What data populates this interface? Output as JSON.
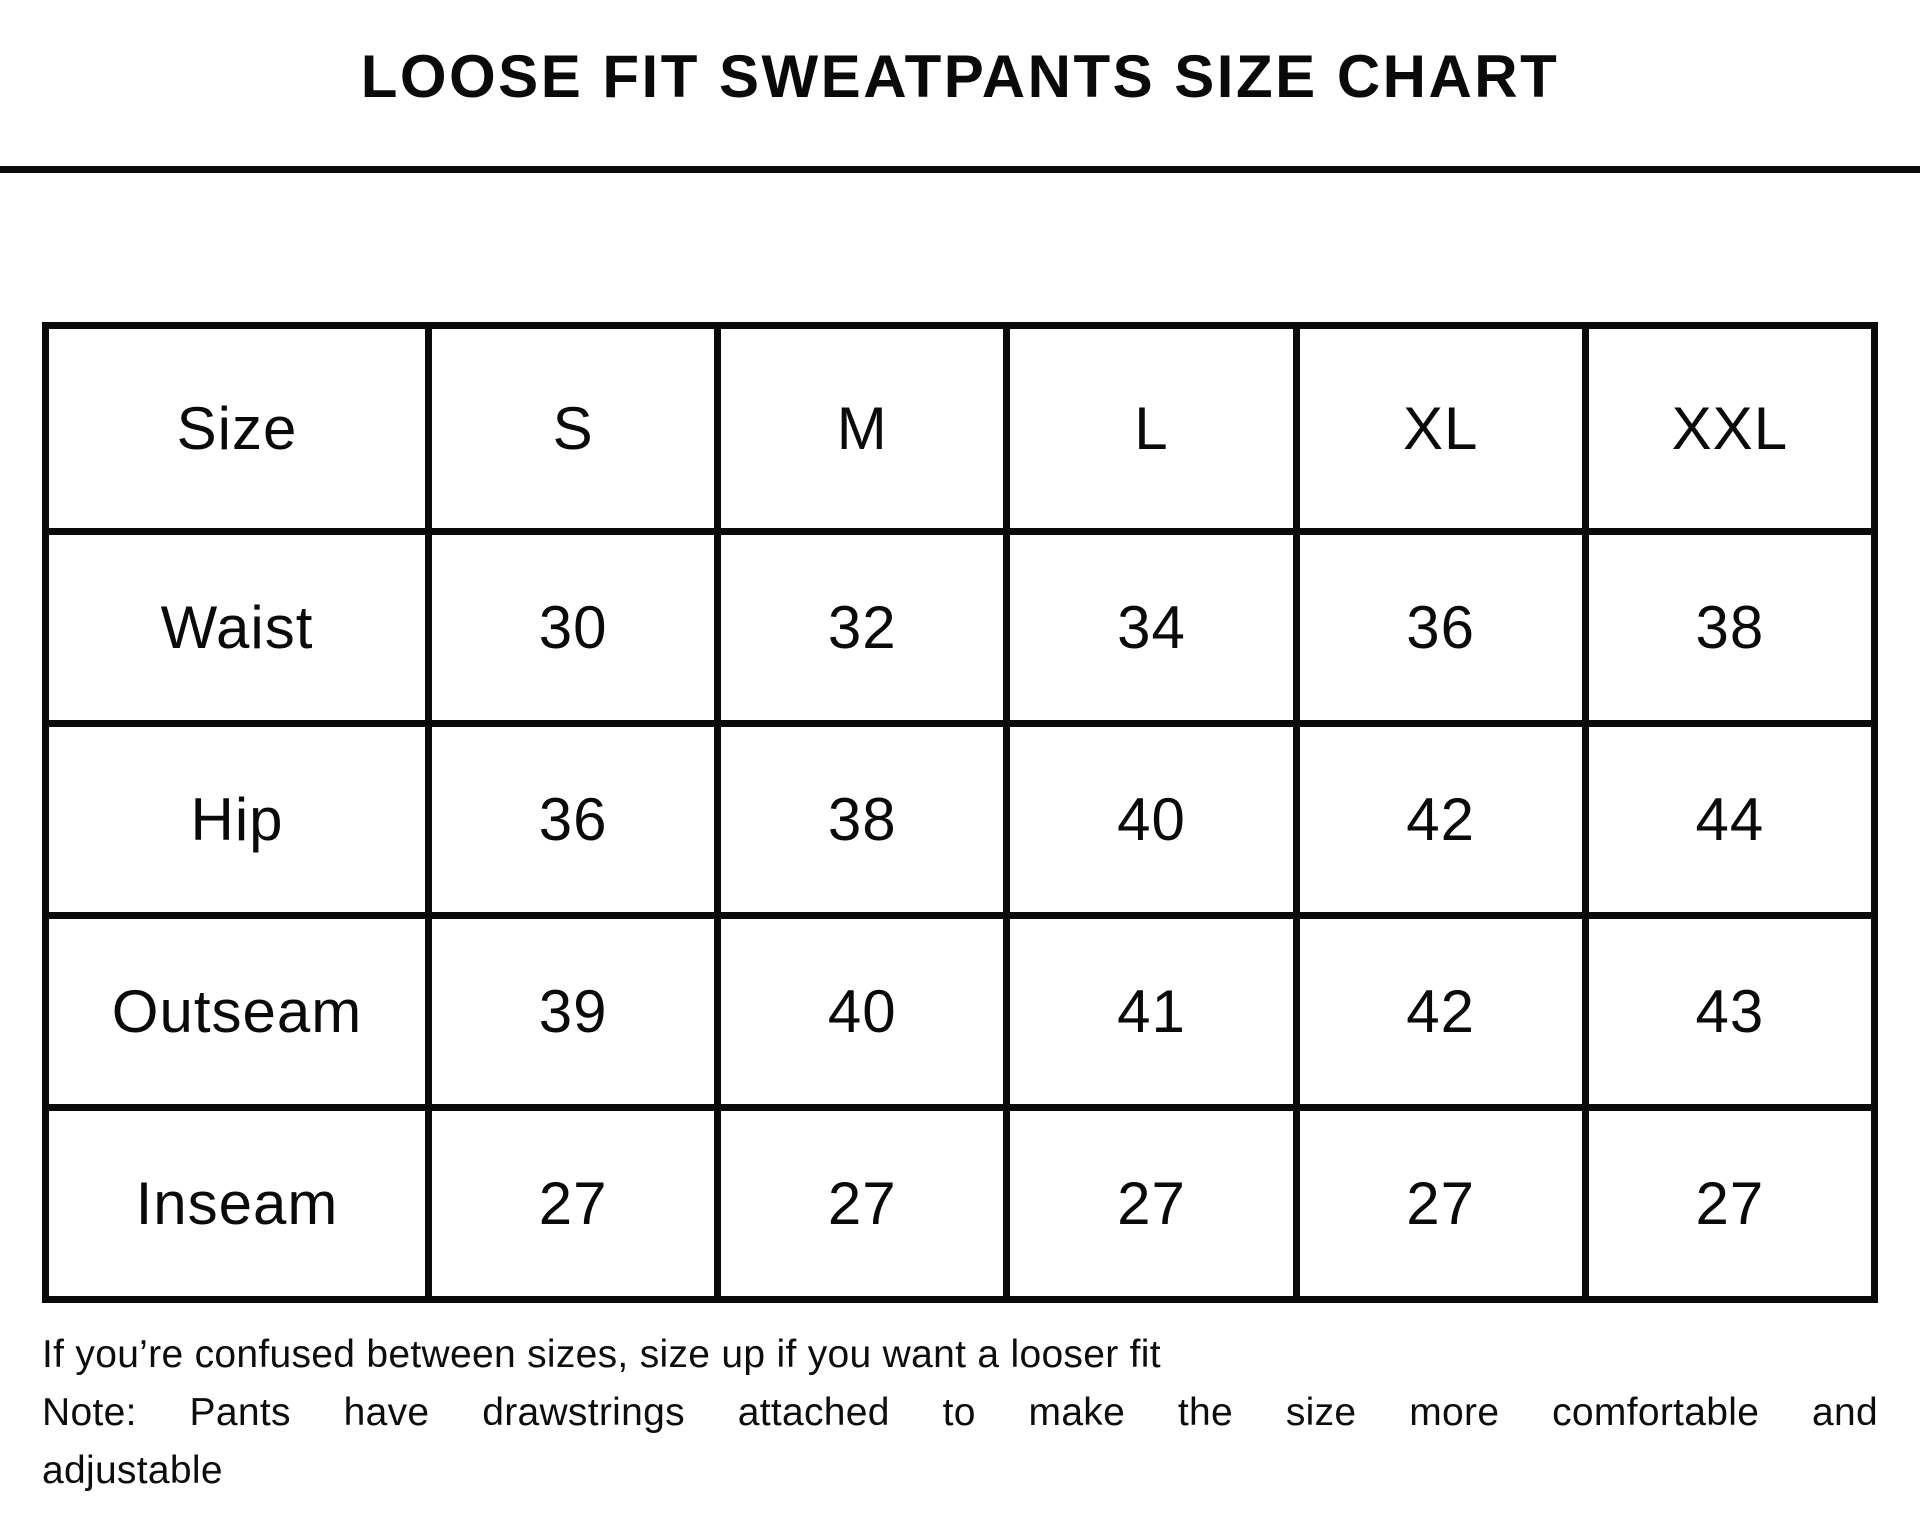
{
  "title": "LOOSE FIT SWEATPANTS SIZE CHART",
  "table": {
    "header": [
      "Size",
      "S",
      "M",
      "L",
      "XL",
      "XXL"
    ],
    "rows": [
      {
        "label": "Waist",
        "values": [
          "30",
          "32",
          "34",
          "36",
          "38"
        ]
      },
      {
        "label": "Hip",
        "values": [
          "36",
          "38",
          "40",
          "42",
          "44"
        ]
      },
      {
        "label": "Outseam",
        "values": [
          "39",
          "40",
          "41",
          "42",
          "43"
        ]
      },
      {
        "label": "Inseam",
        "values": [
          "27",
          "27",
          "27",
          "27",
          "27"
        ]
      }
    ]
  },
  "footer": {
    "lines": [
      "If you’re confused between sizes, size up if you want a looser fit",
      "Note: Pants have drawstrings attached to make the size more comfortable and",
      "adjustable"
    ]
  },
  "colors": {
    "text": "#0a0a0a",
    "border": "#0a0a0a",
    "background": "#ffffff"
  }
}
